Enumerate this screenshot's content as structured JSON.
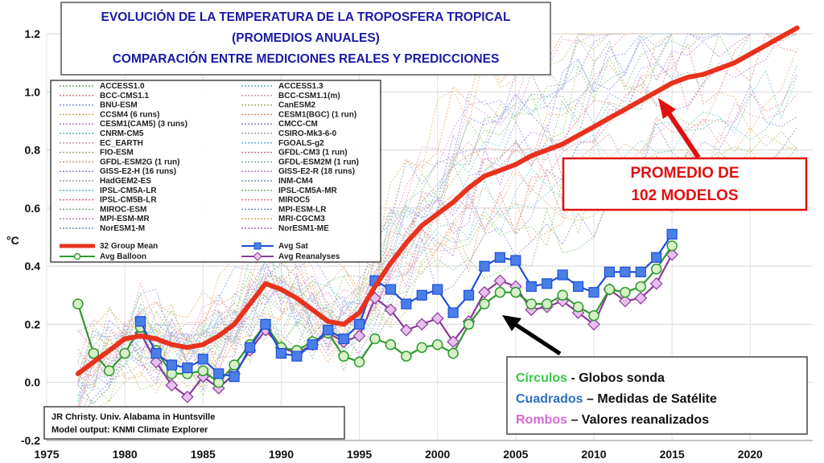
{
  "title": {
    "line1": "EVOLUCIÓN DE LA TEMPERATURA DE LA TROPOSFERA TROPICAL",
    "line2": "(PROMEDIOS ANUALES)",
    "line3": "COMPARACIÓN ENTRE MEDICIONES REALES Y PREDICCIONES"
  },
  "colors": {
    "mean": "#e8321e",
    "sat": "#1f4fd8",
    "balloon": "#2e9a2e",
    "reanalyses": "#8a3a9a",
    "title": "#1a1aa6",
    "callout_border": "#e01010",
    "circles_word": "#36c84a",
    "squares_word": "#2e6fc0",
    "rhombus_word": "#d06ad0"
  },
  "annotations": {
    "promedio_line1": "PROMEDIO DE",
    "promedio_line2": "102 MODELOS",
    "key_circles_word": "Círculos",
    "key_circles_rest": " - Globos sonda",
    "key_squares_word": "Cuadrados",
    "key_squares_rest": " – Medidas de Satélite",
    "key_rhombus_word": "Rombos",
    "key_rhombus_rest": " – Valores reanalizados",
    "credit_line1": "JR Christy. Univ. Alabama in Huntsville",
    "credit_line2": "Model output: KNMI Climate Explorer"
  },
  "legend": {
    "models_left": [
      "ACCESS1.0",
      "BCC-CMS1.1",
      "BNU-ESM",
      "CCSM4 (6 runs)",
      "CESM1(CAM5) (3 runs)",
      "CNRM-CM5",
      "EC_EARTH",
      "FIO-ESM",
      "GFDL-ESM2G (1 run)",
      "GISS-E2-H (16 runs)",
      "HadGEM2-ES",
      "IPSL-CM5A-LR",
      "IPSL-CM5B-LR",
      "MIROC-ESM",
      "MPI-ESM-MR",
      "NorESM1-M"
    ],
    "models_right": [
      "ACCESS1.3",
      "BCC-CSM1.1(m)",
      "CanESM2",
      "CESM1(BGC) (1 run)",
      "CMCC-CM",
      "CSIRO-Mk3-6-0",
      "FGOALS-g2",
      "GFDL-CM3 (1 run)",
      "GFDL-ESM2M (1 run)",
      "GISS-E2-R (18 runs)",
      "INM-CM4",
      "IPSL-CM5A-MR",
      "MIROC5",
      "MPI-ESM-LR",
      "MRI-CGCM3",
      "NorESM1-ME"
    ],
    "mean_label": "32 Group Mean",
    "sat_label": "Avg Sat",
    "balloon_label": "Avg Balloon",
    "reanalyses_label": "Avg Reanalyses"
  },
  "chart_data": {
    "type": "line",
    "ylabel": "°C",
    "xlabel": "",
    "xlim": [
      1975,
      2024
    ],
    "ylim": [
      -0.2,
      1.2
    ],
    "xticks": [
      1975,
      1980,
      1985,
      1990,
      1995,
      2000,
      2005,
      2010,
      2015,
      2020
    ],
    "yticks": [
      -0.2,
      0.0,
      0.2,
      0.4,
      0.6,
      0.8,
      1.0,
      1.2
    ],
    "grid": true,
    "series": [
      {
        "name": "32 Group Mean",
        "marker": "none",
        "x": [
          1977,
          1978,
          1979,
          1980,
          1981,
          1982,
          1983,
          1984,
          1985,
          1986,
          1987,
          1988,
          1989,
          1990,
          1991,
          1992,
          1993,
          1994,
          1995,
          1996,
          1997,
          1998,
          1999,
          2000,
          2001,
          2002,
          2003,
          2004,
          2005,
          2006,
          2007,
          2008,
          2009,
          2010,
          2011,
          2012,
          2013,
          2014,
          2015,
          2016,
          2017,
          2018,
          2019,
          2020,
          2021,
          2022,
          2023
        ],
        "y": [
          0.03,
          0.07,
          0.11,
          0.15,
          0.16,
          0.15,
          0.13,
          0.12,
          0.13,
          0.16,
          0.2,
          0.27,
          0.34,
          0.32,
          0.29,
          0.25,
          0.21,
          0.2,
          0.24,
          0.33,
          0.41,
          0.48,
          0.54,
          0.58,
          0.62,
          0.67,
          0.71,
          0.73,
          0.75,
          0.78,
          0.8,
          0.82,
          0.85,
          0.88,
          0.91,
          0.94,
          0.97,
          1.0,
          1.03,
          1.05,
          1.06,
          1.08,
          1.1,
          1.13,
          1.16,
          1.19,
          1.22
        ]
      },
      {
        "name": "Avg Sat",
        "marker": "square",
        "x": [
          1981,
          1982,
          1983,
          1984,
          1985,
          1986,
          1987,
          1988,
          1989,
          1990,
          1991,
          1992,
          1993,
          1994,
          1995,
          1996,
          1997,
          1998,
          1999,
          2000,
          2001,
          2002,
          2003,
          2004,
          2005,
          2006,
          2007,
          2008,
          2009,
          2010,
          2011,
          2012,
          2013,
          2014,
          2015
        ],
        "y": [
          0.21,
          0.1,
          0.06,
          0.05,
          0.08,
          0.03,
          0.02,
          0.12,
          0.2,
          0.1,
          0.09,
          0.13,
          0.18,
          0.15,
          0.2,
          0.35,
          0.32,
          0.27,
          0.3,
          0.32,
          0.24,
          0.3,
          0.4,
          0.43,
          0.42,
          0.33,
          0.34,
          0.37,
          0.33,
          0.31,
          0.38,
          0.38,
          0.38,
          0.43,
          0.51
        ]
      },
      {
        "name": "Avg Balloon",
        "marker": "circle",
        "x": [
          1977,
          1978,
          1979,
          1980,
          1981,
          1982,
          1983,
          1984,
          1985,
          1986,
          1987,
          1988,
          1989,
          1990,
          1991,
          1992,
          1993,
          1994,
          1995,
          1996,
          1997,
          1998,
          1999,
          2000,
          2001,
          2002,
          2003,
          2004,
          2005,
          2006,
          2007,
          2008,
          2009,
          2010,
          2011,
          2012,
          2013,
          2014,
          2015
        ],
        "y": [
          0.27,
          0.1,
          0.04,
          0.1,
          0.19,
          0.11,
          0.03,
          0.03,
          0.04,
          0.0,
          0.06,
          0.13,
          0.2,
          0.12,
          0.11,
          0.14,
          0.17,
          0.09,
          0.07,
          0.15,
          0.13,
          0.09,
          0.12,
          0.13,
          0.1,
          0.2,
          0.27,
          0.31,
          0.31,
          0.27,
          0.27,
          0.3,
          0.26,
          0.23,
          0.32,
          0.31,
          0.33,
          0.39,
          0.47
        ]
      },
      {
        "name": "Avg Reanalyses",
        "marker": "diamond",
        "x": [
          1981,
          1982,
          1983,
          1984,
          1985,
          1986,
          1987,
          1988,
          1989,
          1990,
          1991,
          1992,
          1993,
          1994,
          1995,
          1996,
          1997,
          1998,
          1999,
          2000,
          2001,
          2002,
          2003,
          2004,
          2005,
          2006,
          2007,
          2008,
          2009,
          2010,
          2011,
          2012,
          2013,
          2014,
          2015
        ],
        "y": [
          0.17,
          0.07,
          -0.01,
          -0.05,
          0.02,
          -0.02,
          0.03,
          0.11,
          0.18,
          0.12,
          0.1,
          0.13,
          0.17,
          0.14,
          0.16,
          0.29,
          0.25,
          0.18,
          0.2,
          0.22,
          0.14,
          0.21,
          0.31,
          0.35,
          0.33,
          0.25,
          0.26,
          0.28,
          0.24,
          0.2,
          0.32,
          0.28,
          0.29,
          0.34,
          0.44
        ]
      }
    ]
  }
}
